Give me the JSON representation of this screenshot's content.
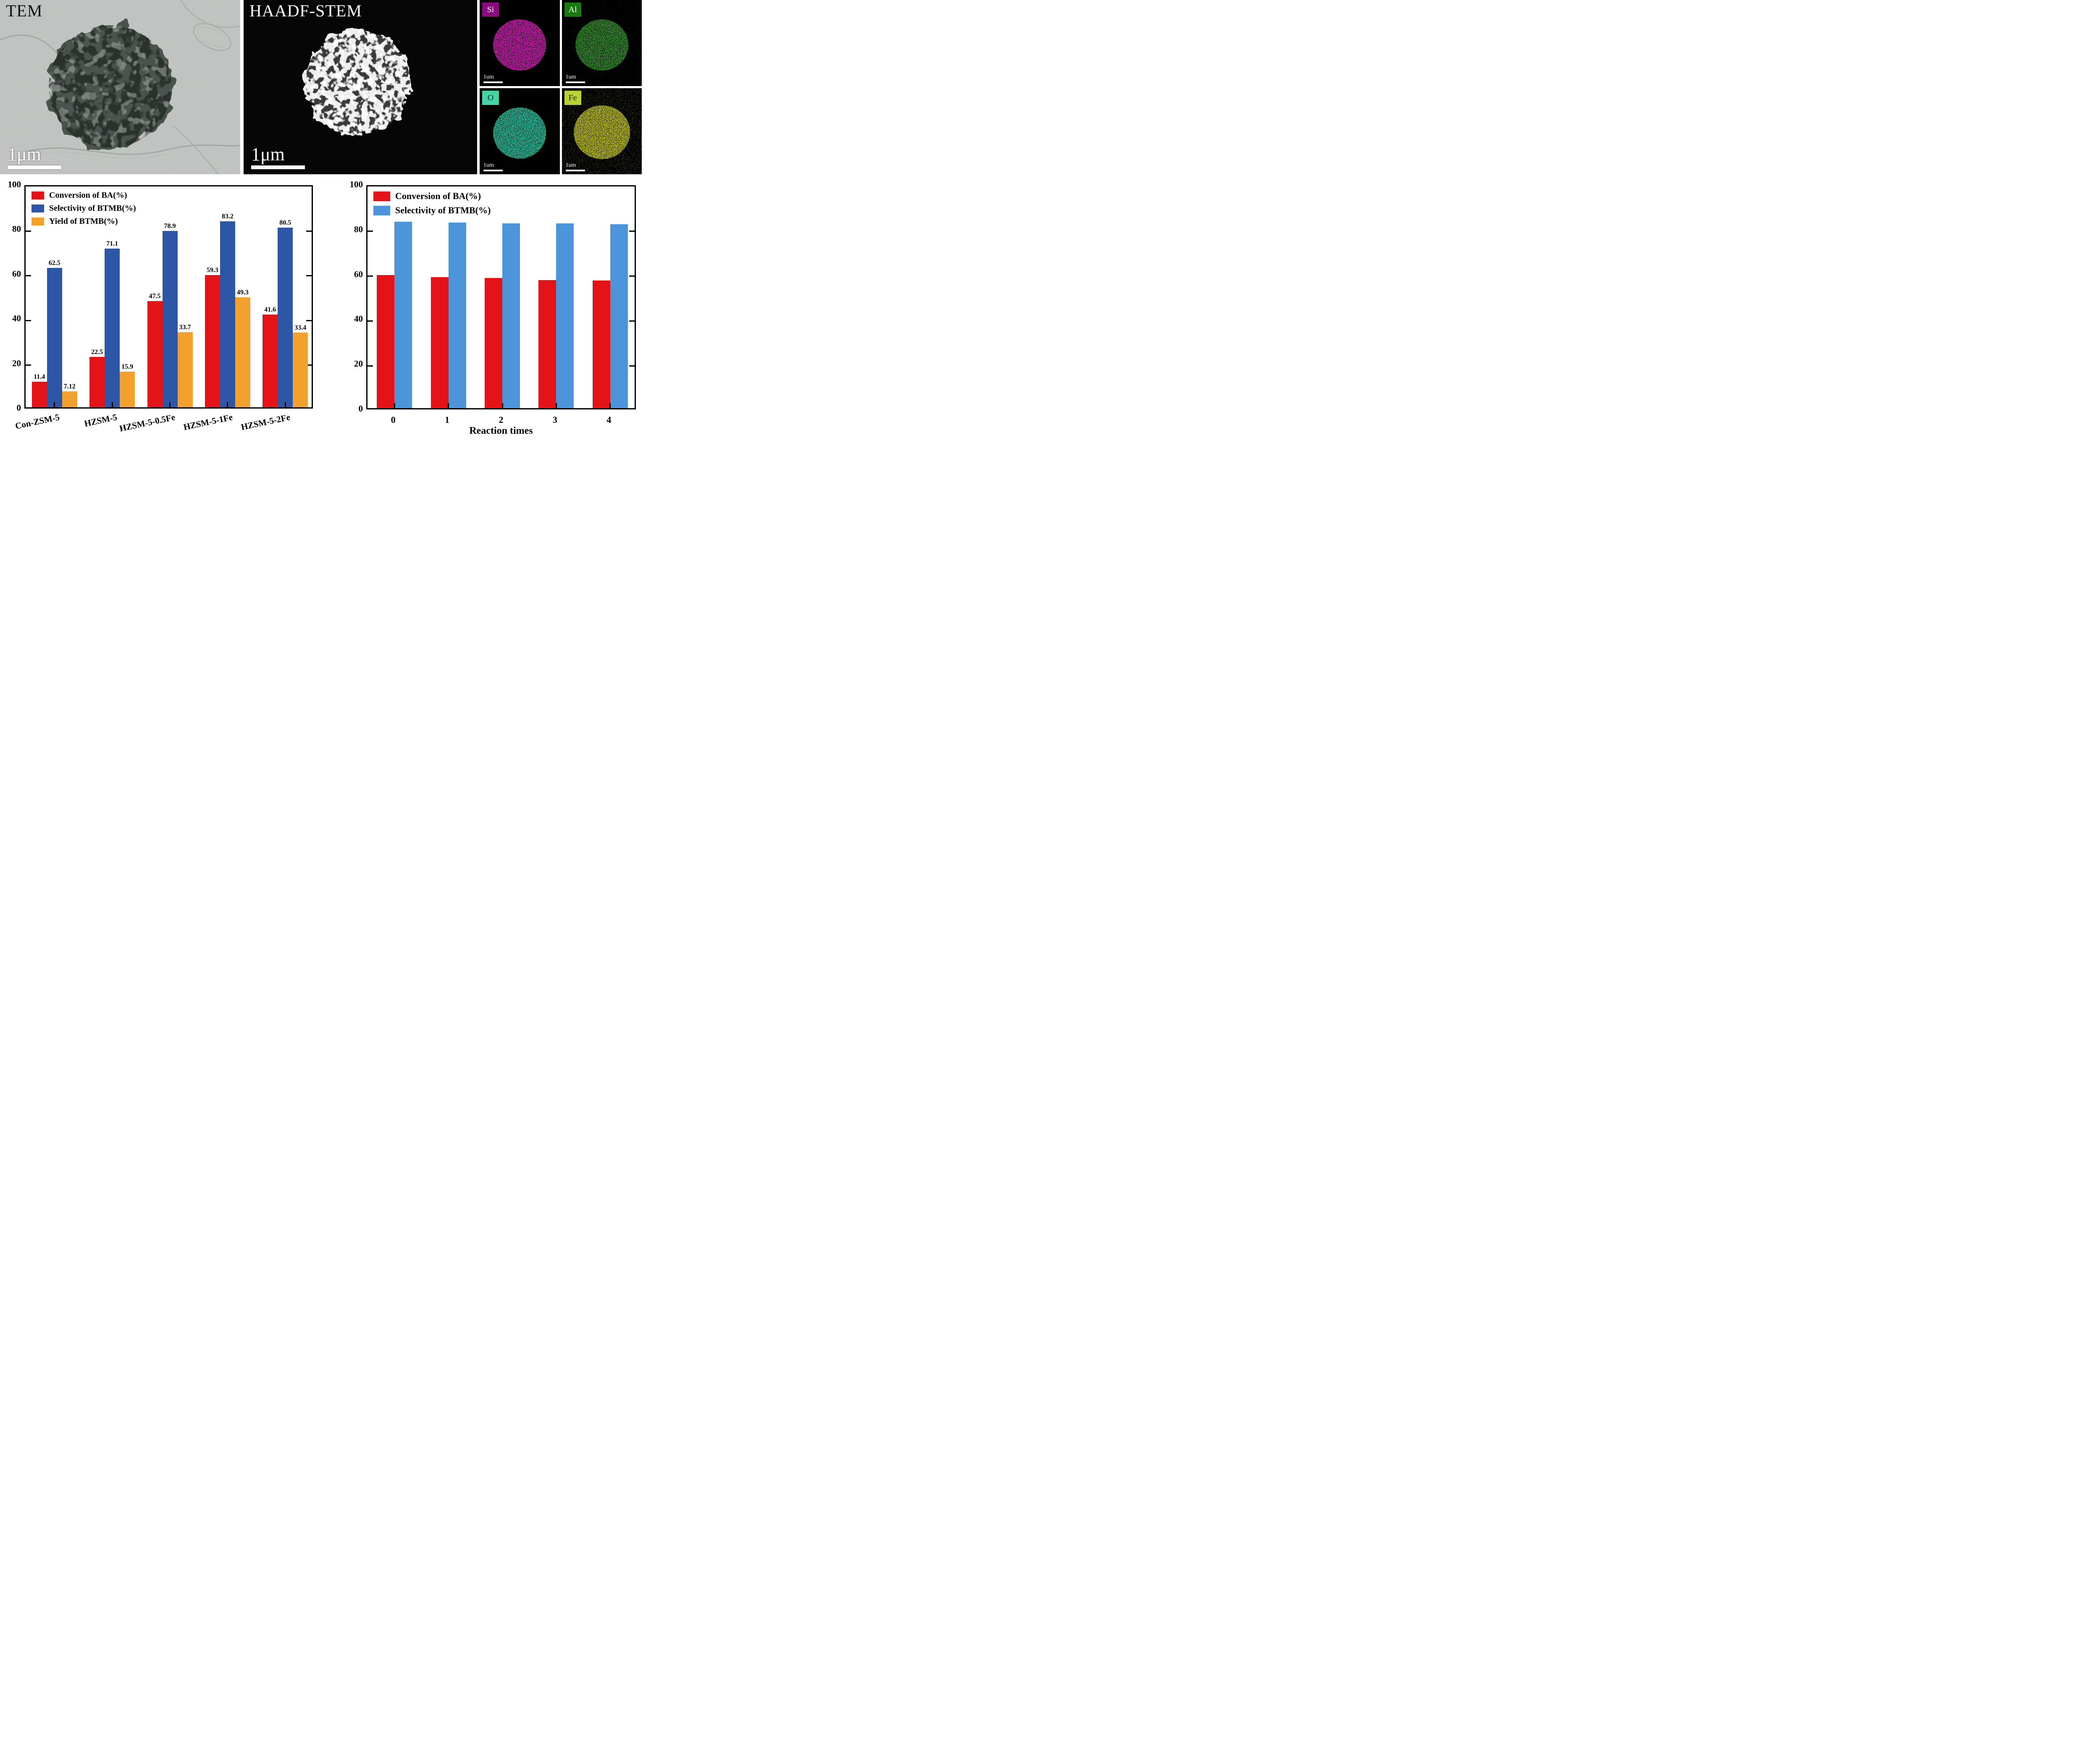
{
  "figure": {
    "tem": {
      "label": "TEM",
      "scalebar": "1μm"
    },
    "haadf": {
      "label": "HAADF-STEM",
      "scalebar": "1μm"
    },
    "eds_maps": [
      {
        "element": "Si",
        "box_color": "#8a0b7d",
        "label_color": "#ffffff",
        "speckle_color": "#e820c8",
        "scalebar": "1um"
      },
      {
        "element": "Al",
        "box_color": "#1a7a12",
        "label_color": "#ffffff",
        "speckle_color": "#46c83c",
        "scalebar": "1um"
      },
      {
        "element": "O",
        "box_color": "#45d3a8",
        "label_color": "#06301f",
        "speckle_color": "#2fd3ad",
        "scalebar": "1um"
      },
      {
        "element": "Fe",
        "box_color": "#b8d434",
        "label_color": "#1c2a00",
        "speckle_color": "#d8dc28",
        "scalebar": "1um"
      }
    ]
  },
  "chart_data": [
    {
      "type": "bar",
      "title": "",
      "categories": [
        "Con-ZSM-5",
        "HZSM-5",
        "HZSM-5-0.5Fe",
        "HZSM-5-1Fe",
        "HZSM-5-2Fe"
      ],
      "series": [
        {
          "name": "Conversion of BA(%)",
          "color": "#e41317",
          "values": [
            11.4,
            22.5,
            47.5,
            59.3,
            41.6
          ],
          "labels": [
            "11.4",
            "22.5",
            "47.5",
            "59.3",
            "41.6"
          ]
        },
        {
          "name": "Selectivity of BTMB(%)",
          "color": "#2d56a7",
          "values": [
            62.5,
            71.1,
            78.9,
            83.2,
            80.5
          ],
          "labels": [
            "62.5",
            "71.1",
            "78.9",
            "83.2",
            "80.5"
          ]
        },
        {
          "name": "Yield of BTMB(%)",
          "color": "#f2a12e",
          "values": [
            7.12,
            15.9,
            33.7,
            49.3,
            33.4
          ],
          "labels": [
            "7.12",
            "15.9",
            "33.7",
            "49.3",
            "33.4"
          ]
        }
      ],
      "xlabel": "",
      "ylabel": "",
      "ylim": [
        0,
        100
      ],
      "yticks": [
        0,
        20,
        40,
        60,
        80,
        100
      ],
      "value_labels": true,
      "legend_position": "top-left",
      "grid": false
    },
    {
      "type": "bar",
      "title": "",
      "categories": [
        "0",
        "1",
        "2",
        "3",
        "4"
      ],
      "series": [
        {
          "name": "Conversion of BA(%)",
          "color": "#e41317",
          "values": [
            59.3,
            58.4,
            58.0,
            57.2,
            57.0
          ]
        },
        {
          "name": "Selectivity of BTMB(%)",
          "color": "#4d95da",
          "values": [
            83.2,
            82.8,
            82.4,
            82.4,
            82.0
          ]
        }
      ],
      "xlabel": "Reaction times",
      "ylabel": "",
      "ylim": [
        0,
        100
      ],
      "yticks": [
        0,
        20,
        40,
        60,
        80,
        100
      ],
      "value_labels": false,
      "legend_position": "top-left",
      "grid": false
    }
  ]
}
